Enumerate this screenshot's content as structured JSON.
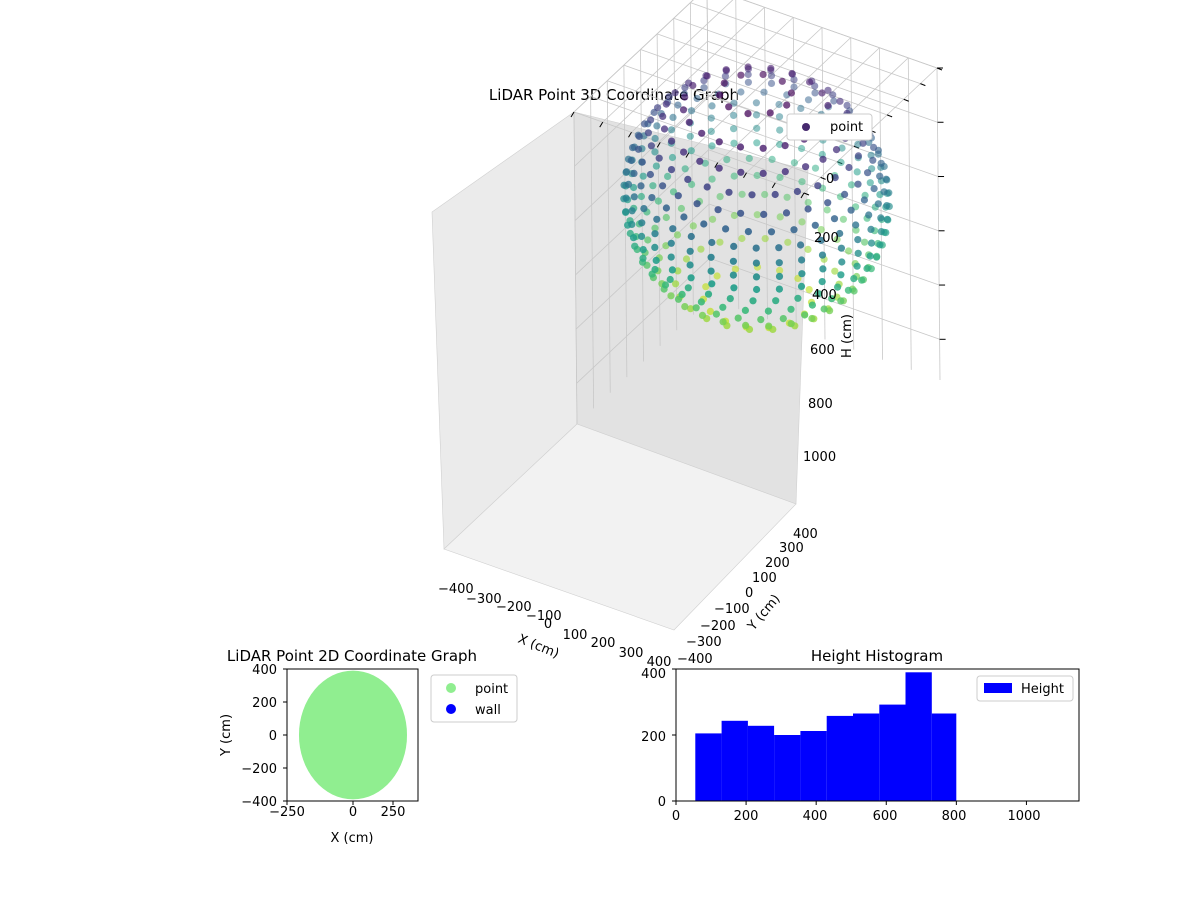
{
  "chart_data": [
    {
      "type": "scatter",
      "title": "LiDAR Point 3D Coordinate Graph",
      "xlabel": "X (cm)",
      "ylabel": "Y (cm)",
      "zlabel": "H (cm)",
      "xlim": [
        -400,
        400
      ],
      "ylim": [
        -400,
        400
      ],
      "zlim": [
        1150,
        0
      ],
      "x_ticks": [
        "−400",
        "−300",
        "−200",
        "−100",
        "0",
        "100",
        "200",
        "300",
        "400"
      ],
      "y_ticks": [
        "−400",
        "−300",
        "−200",
        "−100",
        "0",
        "100",
        "200",
        "300",
        "400"
      ],
      "z_ticks": [
        "0",
        "200",
        "400",
        "600",
        "800",
        "1000"
      ],
      "legend": [
        "point"
      ],
      "legend_position": "top-right",
      "grid": true,
      "colormap": "viridis",
      "description_shape": "dome of points on a sphere of radius ~400 cm, heights 0-800 cm"
    },
    {
      "type": "scatter",
      "title": "LiDAR Point 2D Coordinate Graph",
      "xlabel": "X (cm)",
      "ylabel": "Y (cm)",
      "xlim": [
        -400,
        400
      ],
      "ylim": [
        -400,
        400
      ],
      "x_ticks": [
        "−250",
        "0",
        "250"
      ],
      "y_ticks": [
        "400",
        "200",
        "0",
        "−200",
        "−400"
      ],
      "series": [
        {
          "name": "point",
          "color": "#90ee90"
        },
        {
          "name": "wall",
          "color": "#0000ff"
        }
      ],
      "legend_position": "outside-right"
    },
    {
      "type": "bar",
      "title": "Height Histogram",
      "xlim": [
        0,
        1150
      ],
      "ylim": [
        0,
        400
      ],
      "x_ticks": [
        "0",
        "200",
        "400",
        "600",
        "800",
        "1000"
      ],
      "y_ticks": [
        "0",
        "200",
        "400"
      ],
      "bin_edges": [
        55,
        130,
        205,
        280,
        355,
        430,
        505,
        580,
        655,
        730,
        800
      ],
      "values": [
        205,
        243,
        228,
        200,
        212,
        258,
        265,
        292,
        390,
        265
      ],
      "series": [
        {
          "name": "Height",
          "color": "#0000ff"
        }
      ],
      "legend_position": "top-right"
    }
  ],
  "colors": {
    "point_2d": "#90ee90",
    "wall": "#0000ff",
    "hist_bar": "#0000ff"
  }
}
